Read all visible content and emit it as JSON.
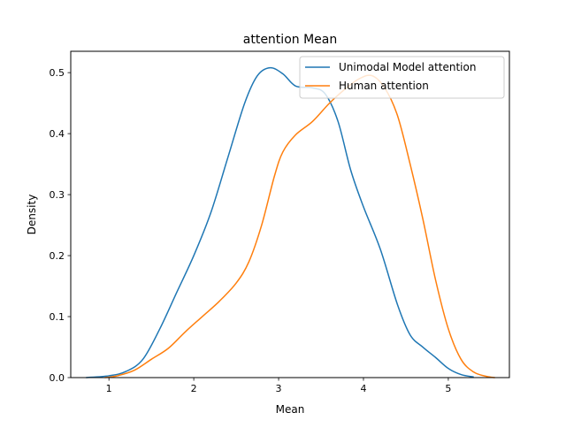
{
  "chart_data": {
    "type": "line",
    "title": "attention Mean",
    "xlabel": "Mean",
    "ylabel": "Density",
    "xlim": [
      0.55,
      5.72
    ],
    "ylim": [
      0,
      0.535
    ],
    "xticks": [
      1,
      2,
      3,
      4,
      5
    ],
    "xtick_labels": [
      "1",
      "2",
      "3",
      "4",
      "5"
    ],
    "yticks": [
      0.0,
      0.1,
      0.2,
      0.3,
      0.4,
      0.5
    ],
    "ytick_labels": [
      "0.0",
      "0.1",
      "0.2",
      "0.3",
      "0.4",
      "0.5"
    ],
    "grid": false,
    "legend_position": "top-right",
    "series": [
      {
        "name": "Unimodal Model attention",
        "color": "#1f77b4",
        "x": [
          0.73,
          1.0,
          1.2,
          1.4,
          1.6,
          1.8,
          2.0,
          2.2,
          2.4,
          2.6,
          2.75,
          2.9,
          3.05,
          3.2,
          3.4,
          3.55,
          3.7,
          3.85,
          4.0,
          4.2,
          4.4,
          4.55,
          4.7,
          4.85,
          5.0,
          5.15,
          5.3
        ],
        "y": [
          0.0,
          0.003,
          0.01,
          0.03,
          0.08,
          0.14,
          0.2,
          0.27,
          0.36,
          0.45,
          0.495,
          0.508,
          0.498,
          0.478,
          0.475,
          0.465,
          0.42,
          0.34,
          0.28,
          0.21,
          0.12,
          0.07,
          0.05,
          0.033,
          0.015,
          0.005,
          0.001
        ]
      },
      {
        "name": "Human attention",
        "color": "#ff7f0e",
        "x": [
          0.95,
          1.1,
          1.3,
          1.5,
          1.7,
          1.9,
          2.1,
          2.3,
          2.5,
          2.65,
          2.8,
          2.95,
          3.05,
          3.2,
          3.4,
          3.6,
          3.8,
          3.95,
          4.1,
          4.25,
          4.4,
          4.55,
          4.7,
          4.85,
          5.0,
          5.15,
          5.3,
          5.45,
          5.55
        ],
        "y": [
          0.0,
          0.003,
          0.012,
          0.03,
          0.048,
          0.075,
          0.1,
          0.125,
          0.155,
          0.19,
          0.25,
          0.33,
          0.37,
          0.398,
          0.42,
          0.45,
          0.475,
          0.49,
          0.495,
          0.475,
          0.43,
          0.35,
          0.26,
          0.16,
          0.08,
          0.03,
          0.009,
          0.002,
          0.0
        ]
      }
    ]
  }
}
